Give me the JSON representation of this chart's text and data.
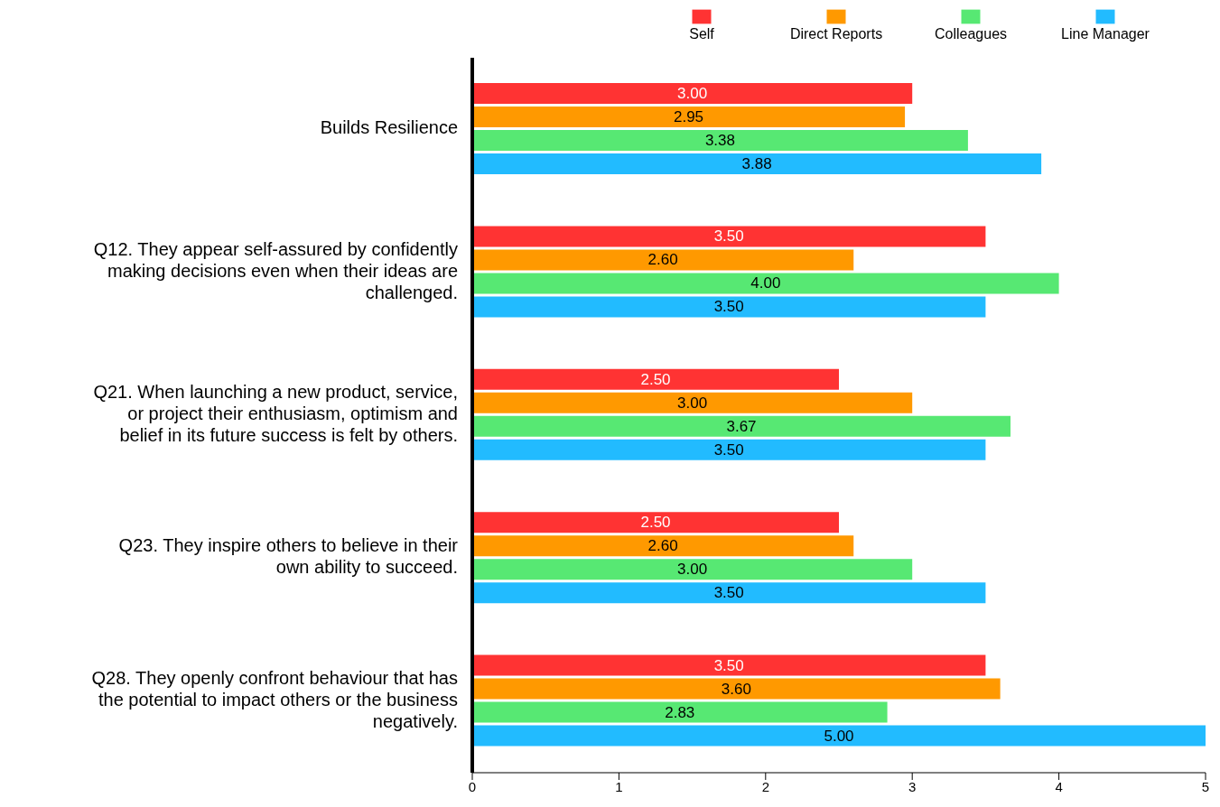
{
  "chart_data": {
    "type": "bar",
    "orientation": "horizontal",
    "categories": [
      "Builds Resilience",
      "Q12. They appear self-assured by confidently making decisions even when their ideas are challenged.",
      "Q21. When launching a new product, service, or project their enthusiasm, optimism and belief in its future success is felt by others.",
      "Q23. They inspire others to believe in their own ability to succeed.",
      "Q28. They openly confront behaviour that has the potential to impact others or the business negatively."
    ],
    "series": [
      {
        "name": "Self",
        "color": "#ff3333",
        "values": [
          3.0,
          3.5,
          2.5,
          2.5,
          3.5
        ],
        "value_labels": [
          "3.00",
          "3.50",
          "2.50",
          "2.50",
          "3.50"
        ]
      },
      {
        "name": "Direct Reports",
        "color": "#ff9900",
        "values": [
          2.95,
          2.6,
          3.0,
          2.6,
          3.6
        ],
        "value_labels": [
          "2.95",
          "2.60",
          "3.00",
          "2.60",
          "3.60"
        ]
      },
      {
        "name": "Colleagues",
        "color": "#57e873",
        "values": [
          3.38,
          4.0,
          3.67,
          3.0,
          2.83
        ],
        "value_labels": [
          "3.38",
          "4.00",
          "3.67",
          "3.00",
          "2.83"
        ]
      },
      {
        "name": "Line Manager",
        "color": "#22bbff",
        "values": [
          3.88,
          3.5,
          3.5,
          3.5,
          5.0
        ],
        "value_labels": [
          "3.88",
          "3.50",
          "3.50",
          "3.50",
          "5.00"
        ]
      }
    ],
    "xlim": [
      0,
      5
    ],
    "xticks": [
      0,
      1,
      2,
      3,
      4,
      5
    ],
    "grid": false,
    "legend": "top right"
  }
}
